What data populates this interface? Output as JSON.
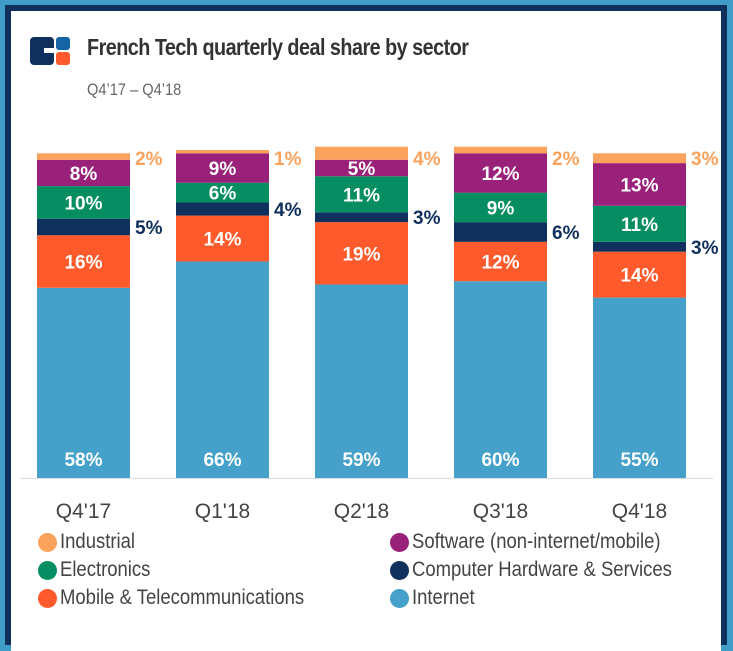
{
  "header": {
    "title": "French Tech quarterly deal share by sector",
    "subtitle": "Q4’17 – Q4’18",
    "logo_icon": "cb-insights-logo-icon"
  },
  "colors": {
    "frame_outer": "#3f9dc8",
    "frame_inner": "#0f2f5c",
    "logo_dark": "#0f2f5c",
    "logo_blue": "#1565a6",
    "logo_orange": "#ff5a2c"
  },
  "chart_data": {
    "type": "bar",
    "stacked": true,
    "title": "French Tech quarterly deal share by sector",
    "subtitle": "Q4’17 – Q4’18",
    "xlabel": "",
    "ylabel": "",
    "ylim": [
      0,
      100
    ],
    "grid": false,
    "legend_position": "bottom",
    "categories": [
      "Q4'17",
      "Q1'18",
      "Q2'18",
      "Q3'18",
      "Q4'18"
    ],
    "series": [
      {
        "name": "Internet",
        "color": "#45a1c9",
        "label_color": "#ffffff",
        "label_inside": true,
        "values": [
          58,
          66,
          59,
          60,
          55
        ]
      },
      {
        "name": "Mobile & Telecommunications",
        "color": "#ff5a2c",
        "label_color": "#ffffff",
        "label_inside": true,
        "values": [
          16,
          14,
          19,
          12,
          14
        ]
      },
      {
        "name": "Computer Hardware & Services",
        "color": "#0f2f5c",
        "label_color": "#0f2f5c",
        "label_inside": false,
        "values": [
          5,
          4,
          3,
          6,
          3
        ]
      },
      {
        "name": "Electronics",
        "color": "#068e62",
        "label_color": "#ffffff",
        "label_inside": true,
        "values": [
          10,
          6,
          11,
          9,
          11
        ]
      },
      {
        "name": "Software (non-internet/mobile)",
        "color": "#99217a",
        "label_color": "#ffffff",
        "label_inside": true,
        "values": [
          8,
          9,
          5,
          12,
          13
        ]
      },
      {
        "name": "Industrial",
        "color": "#fba25c",
        "label_color": "#fba25c",
        "label_inside": false,
        "values": [
          2,
          1,
          4,
          2,
          3
        ]
      }
    ],
    "legend": [
      {
        "name": "Industrial",
        "color": "#fba25c"
      },
      {
        "name": "Software (non-internet/mobile)",
        "color": "#99217a"
      },
      {
        "name": "Electronics",
        "color": "#068e62"
      },
      {
        "name": "Computer Hardware & Services",
        "color": "#0f2f5c"
      },
      {
        "name": "Mobile & Telecommunications",
        "color": "#ff5a2c"
      },
      {
        "name": "Internet",
        "color": "#45a1c9"
      }
    ]
  }
}
